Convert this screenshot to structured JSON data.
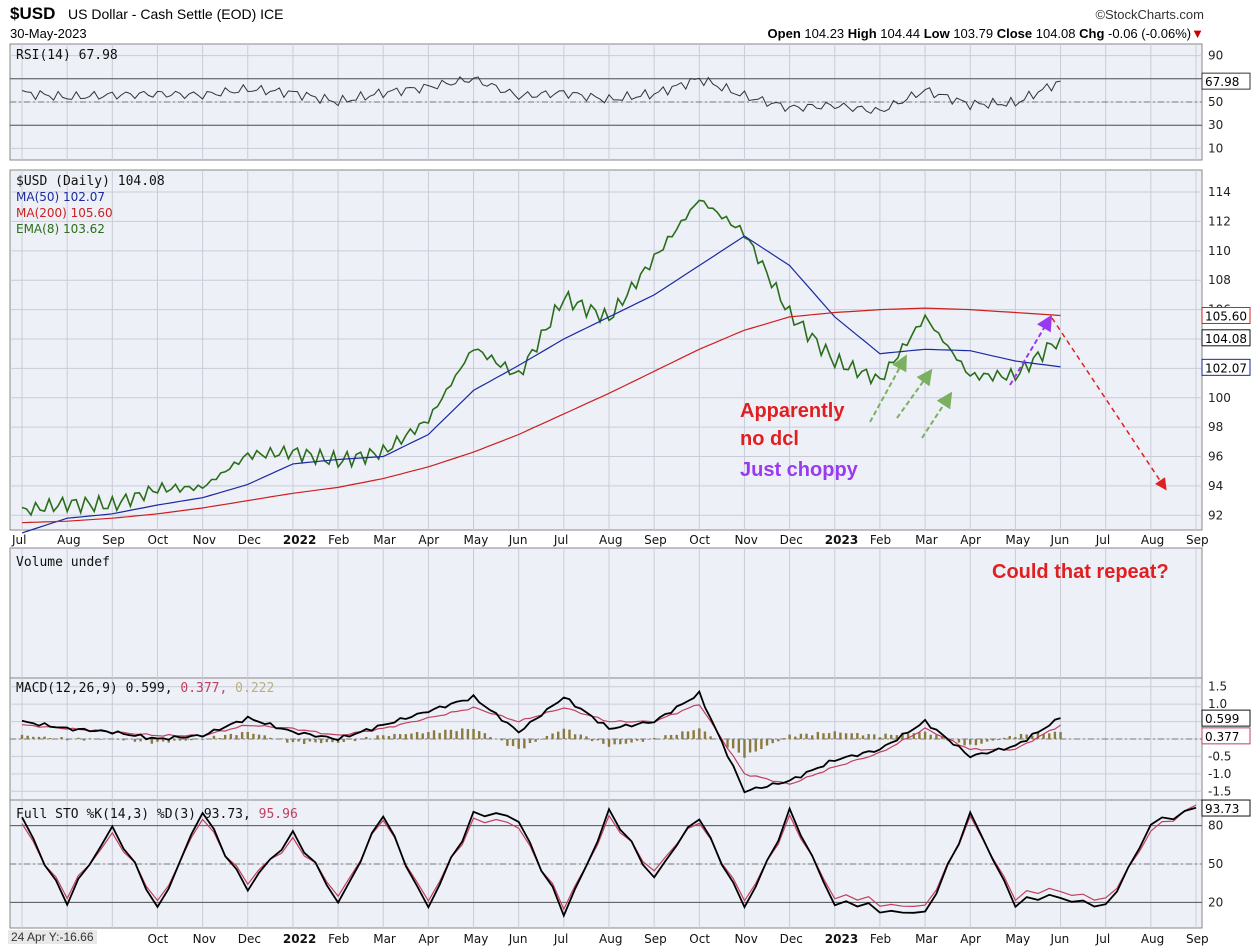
{
  "header": {
    "symbol": "$USD",
    "description": "US Dollar - Cash Settle (EOD)",
    "exchange": "ICE",
    "date": "30-May-2023",
    "brand": "©StockCharts.com",
    "open_label": "Open",
    "open": "104.23",
    "high_label": "High",
    "high": "104.44",
    "low_label": "Low",
    "low": "103.79",
    "close_label": "Close",
    "close": "104.08",
    "chg_label": "Chg",
    "chg": "-0.06 (-0.06%)",
    "chg_arrow": "▼"
  },
  "colors": {
    "panel_bg": "#eef0f8",
    "price": "#2a6e1a",
    "ma50": "#1a2aa0",
    "ma200": "#cc2020",
    "rsi": "#333333",
    "macd": "#000000",
    "signal": "#c04060",
    "hist": "#8a7a40",
    "sto_k": "#000000",
    "sto_d": "#c04060",
    "ann_red": "#e02020",
    "ann_purple": "#9a3af0",
    "arrow_green": "#7ab060"
  },
  "corner_text": "24 Apr Y:-16.66",
  "annotations": {
    "line1": "Apparently",
    "line2": "no dcl",
    "line3": "Just choppy",
    "repeat": "Could that repeat?"
  },
  "chart_data": [
    {
      "type": "line",
      "panel": "RSI",
      "legend": "RSI(14) 67.98",
      "last_value_label": "67.98",
      "y_ticks": [
        "90",
        "70",
        "50",
        "30",
        "10"
      ],
      "ylim": [
        0,
        100
      ],
      "x": [
        "Jul 2021",
        "Aug",
        "Sep",
        "Oct",
        "Nov",
        "Dec",
        "Jan 2022",
        "Feb",
        "Mar",
        "Apr",
        "May",
        "Jun",
        "Jul",
        "Aug",
        "Sep",
        "Oct",
        "Nov",
        "Dec",
        "Jan 2023",
        "Feb",
        "Mar",
        "Apr",
        "May",
        "Jun 2023"
      ],
      "values": [
        58,
        54,
        56,
        57,
        56,
        61,
        58,
        50,
        58,
        63,
        70,
        55,
        58,
        52,
        57,
        70,
        55,
        45,
        47,
        42,
        60,
        48,
        49,
        68
      ]
    },
    {
      "type": "line",
      "panel": "Price",
      "legend": [
        "$USD (Daily) 104.08",
        "MA(50) 102.07",
        "MA(200) 105.60",
        "EMA(8) 103.62"
      ],
      "y_ticks": [
        "114",
        "112",
        "110",
        "108",
        "106",
        "104",
        "102",
        "100",
        "98",
        "96",
        "94",
        "92"
      ],
      "ylim": [
        91,
        115.5
      ],
      "price_tags": [
        "105.60",
        "104.08",
        "102.07"
      ],
      "x_labels": [
        "Jul",
        "Aug",
        "Sep",
        "Oct",
        "Nov",
        "Dec",
        "2022",
        "Feb",
        "Mar",
        "Apr",
        "May",
        "Jun",
        "Jul",
        "Aug",
        "Sep",
        "Oct",
        "Nov",
        "Dec",
        "2023",
        "Feb",
        "Mar",
        "Apr",
        "May",
        "Jun",
        "Jul",
        "Aug",
        "Sep"
      ],
      "series": [
        {
          "name": "$USD (Daily)",
          "x": [
            "Jul 2021",
            "Aug",
            "Sep",
            "Oct",
            "Nov",
            "Dec",
            "Jan 2022",
            "Feb",
            "Mar",
            "Apr",
            "May",
            "Jun",
            "Jul",
            "Aug",
            "Sep",
            "Oct",
            "Nov",
            "Dec",
            "Jan 2023",
            "Feb",
            "Mar",
            "Apr",
            "May",
            "Jun 2023"
          ],
          "values": [
            92.3,
            92.8,
            92.7,
            93.8,
            93.9,
            96.1,
            96.3,
            95.7,
            96.3,
            98.5,
            103.4,
            101.5,
            106.8,
            105.4,
            109.5,
            113.5,
            111.2,
            105.7,
            102.5,
            101.2,
            105.5,
            101.5,
            101.5,
            104.1
          ]
        },
        {
          "name": "MA(50)",
          "x": [
            "Jul 2021",
            "Aug",
            "Sep",
            "Oct",
            "Nov",
            "Dec",
            "Jan 2022",
            "Feb",
            "Mar",
            "Apr",
            "May",
            "Jun",
            "Jul",
            "Aug",
            "Sep",
            "Oct",
            "Nov",
            "Dec",
            "Jan 2023",
            "Feb",
            "Mar",
            "Apr",
            "May",
            "Jun 2023"
          ],
          "values": [
            90.8,
            91.8,
            92.1,
            92.7,
            93.2,
            94.1,
            95.5,
            95.8,
            96.0,
            97.5,
            100.5,
            102.2,
            104.0,
            105.5,
            107.0,
            109.0,
            111.0,
            109.0,
            105.5,
            103.0,
            103.3,
            103.2,
            102.5,
            102.1
          ]
        },
        {
          "name": "MA(200)",
          "x": [
            "Jul 2021",
            "Aug",
            "Sep",
            "Oct",
            "Nov",
            "Dec",
            "Jan 2022",
            "Feb",
            "Mar",
            "Apr",
            "May",
            "Jun",
            "Jul",
            "Aug",
            "Sep",
            "Oct",
            "Nov",
            "Dec",
            "Jan 2023",
            "Feb",
            "Mar",
            "Apr",
            "May",
            "Jun 2023"
          ],
          "values": [
            91.5,
            91.6,
            91.8,
            92.1,
            92.5,
            93.0,
            93.5,
            93.9,
            94.5,
            95.3,
            96.3,
            97.5,
            98.9,
            100.3,
            101.8,
            103.3,
            104.6,
            105.5,
            105.8,
            106.0,
            106.1,
            106.0,
            105.8,
            105.6
          ]
        }
      ]
    },
    {
      "type": "bar",
      "panel": "Volume",
      "legend": "Volume undef",
      "values": []
    },
    {
      "type": "line",
      "panel": "MACD",
      "legend_prefix": "MACD(12,26,9)",
      "legend_macd": "0.599",
      "legend_signal": "0.377",
      "legend_hist": "0.222",
      "tag_macd": "0.599",
      "tag_signal": "0.377",
      "y_ticks": [
        "1.5",
        "1.0",
        "0.5",
        "0.0",
        "-0.5",
        "-1.0",
        "-1.5"
      ],
      "ylim": [
        -1.75,
        1.75
      ],
      "x": [
        "Jul 2021",
        "Aug",
        "Sep",
        "Oct",
        "Nov",
        "Dec",
        "Jan 2022",
        "Feb",
        "Mar",
        "Apr",
        "May",
        "Jun",
        "Jul",
        "Aug",
        "Sep",
        "Oct",
        "Nov",
        "Dec",
        "Jan 2023",
        "Feb",
        "Mar",
        "Apr",
        "May",
        "Jun 2023"
      ],
      "series": [
        {
          "name": "MACD",
          "values": [
            0.5,
            0.3,
            0.2,
            0.0,
            0.1,
            0.6,
            0.2,
            0.0,
            0.4,
            0.8,
            1.2,
            0.2,
            1.2,
            0.3,
            0.5,
            1.3,
            -1.5,
            -1.2,
            -0.6,
            -0.3,
            0.5,
            -0.5,
            -0.2,
            0.6
          ]
        },
        {
          "name": "Signal",
          "values": [
            0.4,
            0.3,
            0.2,
            0.1,
            0.1,
            0.4,
            0.3,
            0.1,
            0.3,
            0.6,
            0.9,
            0.5,
            0.9,
            0.5,
            0.5,
            1.0,
            -1.0,
            -1.3,
            -0.8,
            -0.4,
            0.3,
            -0.3,
            -0.3,
            0.4
          ]
        },
        {
          "name": "Histogram",
          "values": [
            0.1,
            0.0,
            0.0,
            -0.1,
            0.0,
            0.2,
            -0.1,
            -0.1,
            0.1,
            0.2,
            0.3,
            -0.3,
            0.3,
            -0.2,
            0.0,
            0.3,
            -0.5,
            0.1,
            0.2,
            0.1,
            0.2,
            -0.2,
            0.1,
            0.2
          ]
        }
      ]
    },
    {
      "type": "line",
      "panel": "Stochastic",
      "legend_prefix": "Full STO %K(14,3) %D(3)",
      "legend_k": "93.73",
      "legend_d": "95.96",
      "tag": "93.73",
      "y_ticks": [
        "80",
        "50",
        "20"
      ],
      "ylim": [
        0,
        100
      ],
      "x_labels": [
        "Oct",
        "Nov",
        "Dec",
        "2022",
        "Feb",
        "Mar",
        "Apr",
        "May",
        "Jun",
        "Jul",
        "Aug",
        "Sep",
        "Oct",
        "Nov",
        "Dec",
        "2023",
        "Feb",
        "Mar",
        "Apr",
        "May",
        "Jun",
        "Jul",
        "Aug",
        "Sep"
      ],
      "series": [
        {
          "name": "%K",
          "values": [
            85,
            20,
            80,
            15,
            90,
            30,
            75,
            20,
            88,
            15,
            90,
            85,
            10,
            90,
            40,
            88,
            15,
            90,
            20,
            15,
            10,
            88,
            20,
            25,
            15,
            80,
            94
          ]
        },
        {
          "name": "%D",
          "values": [
            80,
            25,
            75,
            20,
            85,
            35,
            70,
            25,
            85,
            20,
            85,
            80,
            15,
            85,
            45,
            85,
            20,
            85,
            25,
            20,
            15,
            85,
            25,
            30,
            20,
            75,
            96
          ]
        }
      ]
    }
  ]
}
